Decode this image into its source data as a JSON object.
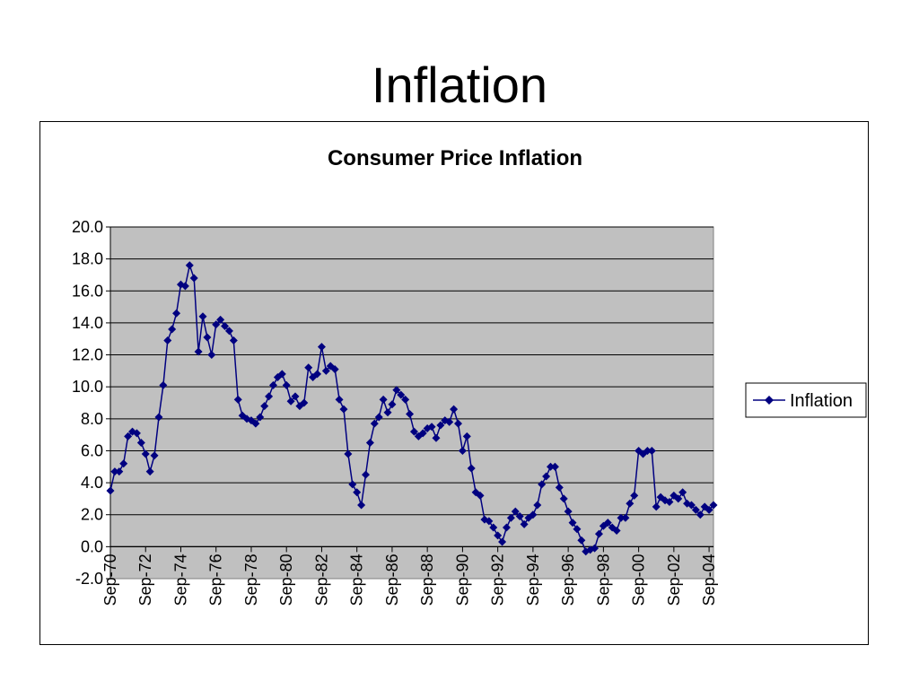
{
  "slide": {
    "title": "Inflation"
  },
  "chart_data": {
    "type": "line",
    "title": "Consumer Price Inflation",
    "xlabel": "",
    "ylabel": "",
    "ylim": [
      -2,
      20
    ],
    "y_ticks": [
      "20.0",
      "18.0",
      "16.0",
      "14.0",
      "12.0",
      "10.0",
      "8.0",
      "6.0",
      "4.0",
      "2.0",
      "0.0",
      "-2.0"
    ],
    "x_tick_labels": [
      "Sep-70",
      "Sep-72",
      "Sep-74",
      "Sep-76",
      "Sep-78",
      "Sep-80",
      "Sep-82",
      "Sep-84",
      "Sep-86",
      "Sep-88",
      "Sep-90",
      "Sep-92",
      "Sep-94",
      "Sep-96",
      "Sep-98",
      "Sep-00",
      "Sep-02",
      "Sep-04"
    ],
    "x_start": "Sep-70",
    "x_end": "Sep-04",
    "x_frequency": "quarterly",
    "grid": true,
    "legend_position": "right",
    "plot_background": "#C0C0C0",
    "series": [
      {
        "name": "Inflation",
        "color": "#000080",
        "marker": "diamond",
        "values": [
          3.5,
          4.7,
          4.7,
          5.2,
          6.9,
          7.2,
          7.1,
          6.5,
          5.8,
          4.7,
          5.7,
          8.1,
          10.1,
          12.9,
          13.6,
          14.6,
          16.4,
          16.3,
          17.6,
          16.8,
          12.2,
          14.4,
          13.1,
          12.0,
          13.9,
          14.2,
          13.8,
          13.5,
          12.9,
          9.2,
          8.2,
          8.0,
          7.9,
          7.7,
          8.1,
          8.8,
          9.4,
          10.1,
          10.6,
          10.8,
          10.1,
          9.1,
          9.4,
          8.8,
          9.0,
          11.2,
          10.6,
          10.8,
          12.5,
          11.0,
          11.3,
          11.1,
          9.2,
          8.6,
          5.8,
          3.9,
          3.4,
          2.6,
          4.5,
          6.5,
          7.7,
          8.1,
          9.2,
          8.4,
          8.9,
          9.8,
          9.5,
          9.2,
          8.3,
          7.2,
          6.9,
          7.1,
          7.4,
          7.5,
          6.8,
          7.6,
          7.9,
          7.8,
          8.6,
          7.7,
          6.0,
          6.9,
          4.9,
          3.4,
          3.2,
          1.7,
          1.6,
          1.2,
          0.7,
          0.3,
          1.2,
          1.8,
          2.2,
          1.9,
          1.4,
          1.8,
          2.0,
          2.6,
          3.9,
          4.4,
          5.0,
          5.0,
          3.7,
          3.0,
          2.2,
          1.5,
          1.1,
          0.4,
          -0.3,
          -0.2,
          -0.1,
          0.8,
          1.3,
          1.5,
          1.2,
          1.0,
          1.8,
          1.8,
          2.7,
          3.2,
          6.0,
          5.8,
          6.0,
          6.0,
          2.5,
          3.1,
          2.9,
          2.8,
          3.2,
          3.0,
          3.4,
          2.7,
          2.6,
          2.3,
          2.0,
          2.5,
          2.3,
          2.6
        ]
      }
    ]
  }
}
